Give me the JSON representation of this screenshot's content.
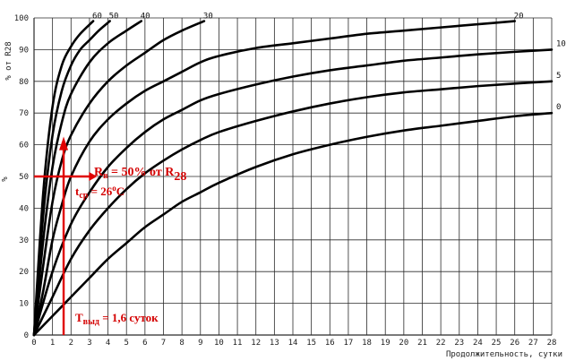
{
  "chart_data": {
    "type": "line",
    "xlabel": "Продолжительность, сутки",
    "ylabel": "% от R28",
    "y_side_mark": "%",
    "xlim": [
      0,
      28
    ],
    "ylim": [
      0,
      100
    ],
    "x_ticks": [
      0,
      1,
      2,
      3,
      4,
      5,
      6,
      7,
      8,
      9,
      10,
      11,
      12,
      13,
      14,
      15,
      16,
      17,
      18,
      19,
      20,
      21,
      22,
      23,
      24,
      25,
      26,
      27,
      28
    ],
    "y_ticks": [
      0,
      10,
      20,
      30,
      40,
      50,
      60,
      70,
      80,
      90,
      100
    ],
    "grid": true,
    "series": [
      {
        "name": "60",
        "x": [
          0,
          0.5,
          1,
          1.5,
          2,
          2.5,
          3.2
        ],
        "y": [
          0,
          45,
          72,
          85,
          91,
          95,
          99
        ]
      },
      {
        "name": "50",
        "x": [
          0,
          0.5,
          1,
          1.5,
          2,
          2.5,
          3,
          3.5,
          4.1
        ],
        "y": [
          0,
          38,
          63,
          77,
          85,
          90,
          93,
          96,
          99
        ]
      },
      {
        "name": "40",
        "x": [
          0,
          0.5,
          1,
          1.5,
          2,
          3,
          4,
          5,
          5.8
        ],
        "y": [
          0,
          30,
          53,
          67,
          76,
          86,
          92,
          96,
          99
        ]
      },
      {
        "name": "30",
        "x": [
          0,
          0.5,
          1,
          1.5,
          2,
          3,
          4,
          5,
          6,
          7,
          8,
          9.2
        ],
        "y": [
          0,
          22,
          42,
          55,
          63,
          73,
          80,
          85,
          89,
          93,
          96,
          99
        ]
      },
      {
        "name": "20",
        "x": [
          0,
          0.5,
          1,
          1.5,
          2,
          3,
          4,
          5,
          6,
          7,
          8,
          9,
          10,
          12,
          14,
          16,
          18,
          20,
          22,
          24,
          26
        ],
        "y": [
          0,
          14,
          30,
          41,
          50,
          61,
          68,
          73,
          77,
          80,
          83,
          86,
          88,
          90.5,
          92,
          93.5,
          95,
          96,
          97,
          98,
          99
        ]
      },
      {
        "name": "10",
        "x": [
          0,
          1,
          2,
          3,
          4,
          5,
          6,
          7,
          8,
          9,
          10,
          12,
          14,
          16,
          18,
          20,
          22,
          24,
          26,
          28
        ],
        "y": [
          0,
          20,
          35,
          45,
          53,
          59,
          64,
          68,
          71,
          74,
          76,
          79,
          81.5,
          83.5,
          85,
          86.5,
          87.5,
          88.5,
          89.3,
          90
        ]
      },
      {
        "name": "5",
        "x": [
          0,
          1,
          2,
          3,
          4,
          5,
          6,
          7,
          8,
          9,
          10,
          12,
          14,
          16,
          18,
          20,
          22,
          24,
          26,
          28
        ],
        "y": [
          0,
          12,
          24,
          33,
          40,
          46,
          51,
          55,
          58.5,
          61.5,
          64,
          67.5,
          70.5,
          73,
          75,
          76.5,
          77.5,
          78.5,
          79.3,
          80
        ]
      },
      {
        "name": "0",
        "x": [
          0,
          1,
          2,
          3,
          4,
          5,
          6,
          7,
          8,
          9,
          10,
          12,
          14,
          16,
          18,
          20,
          22,
          24,
          26,
          28
        ],
        "y": [
          0,
          6,
          12,
          18,
          24,
          29,
          34,
          38,
          42,
          45,
          48,
          53,
          57,
          60,
          62.5,
          64.5,
          66,
          67.5,
          69,
          70
        ]
      }
    ],
    "annotations": {
      "strength": {
        "text_main": "R",
        "text_sub": "в",
        "text_mid": " = 50% от R",
        "text_sub2": "28",
        "x": 2.1,
        "y": 50
      },
      "temperature": {
        "text_main": "t",
        "text_sub": "ср",
        "text_mid": " = 26",
        "text_sup": "о",
        "text_end": "С"
      },
      "duration": {
        "text_main": "Т",
        "text_sub": "выд",
        "text_mid": " = 1,6 суток",
        "x": 1.6
      },
      "accent_color": "#e00000"
    }
  }
}
